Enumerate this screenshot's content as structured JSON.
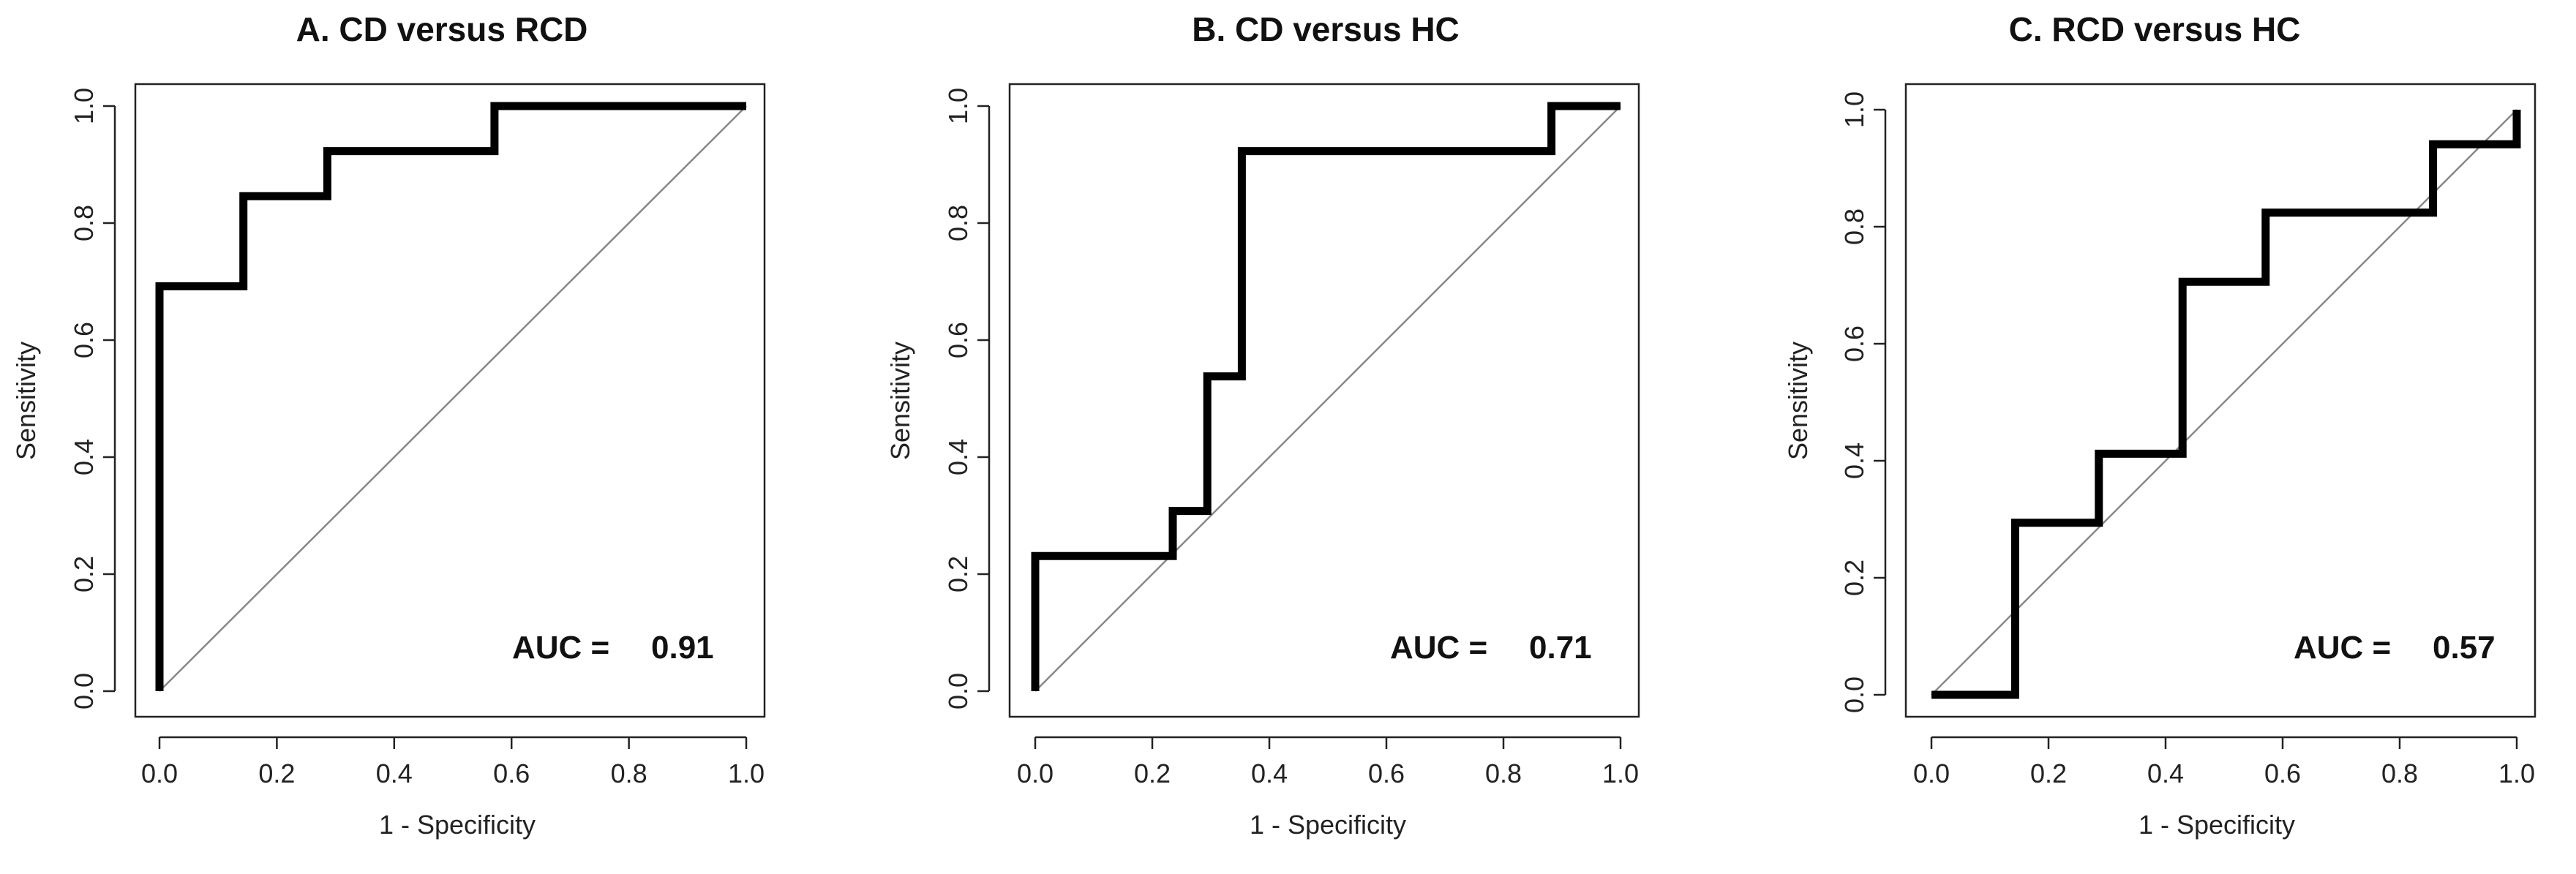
{
  "chart_data": [
    {
      "type": "line",
      "title": "A. CD versus RCD",
      "xlabel": "1 - Specificity",
      "ylabel": "Sensitivity",
      "xlim": [
        0,
        1
      ],
      "ylim": [
        0,
        1
      ],
      "xticks": [
        "0.0",
        "0.2",
        "0.4",
        "0.6",
        "0.8",
        "1.0"
      ],
      "yticks": [
        "0.0",
        "0.2",
        "0.4",
        "0.6",
        "0.8",
        "1.0"
      ],
      "auc_label": "AUC =",
      "auc_value": "0.91",
      "reference_line": "diagonal",
      "x": [
        0,
        0,
        0.143,
        0.143,
        0.286,
        0.286,
        0.571,
        0.571,
        1.0
      ],
      "y": [
        0,
        0.692,
        0.692,
        0.846,
        0.846,
        0.923,
        0.923,
        1.0,
        1.0
      ]
    },
    {
      "type": "line",
      "title": "B. CD versus HC",
      "xlabel": "1 - Specificity",
      "ylabel": "Sensitivity",
      "xlim": [
        0,
        1
      ],
      "ylim": [
        0,
        1
      ],
      "xticks": [
        "0.0",
        "0.2",
        "0.4",
        "0.6",
        "0.8",
        "1.0"
      ],
      "yticks": [
        "0.0",
        "0.2",
        "0.4",
        "0.6",
        "0.8",
        "1.0"
      ],
      "auc_label": "AUC =",
      "auc_value": "0.71",
      "reference_line": "diagonal",
      "x": [
        0,
        0,
        0.235,
        0.235,
        0.294,
        0.294,
        0.353,
        0.353,
        0.882,
        0.882,
        1.0
      ],
      "y": [
        0,
        0.231,
        0.231,
        0.308,
        0.308,
        0.538,
        0.538,
        0.923,
        0.923,
        1.0,
        1.0
      ]
    },
    {
      "type": "line",
      "title": "C. RCD versus HC",
      "xlabel": "1 - Specificity",
      "ylabel": "Sensitivity",
      "xlim": [
        0,
        1
      ],
      "ylim": [
        0,
        1
      ],
      "xticks": [
        "0.0",
        "0.2",
        "0.4",
        "0.6",
        "0.8",
        "1.0"
      ],
      "yticks": [
        "0.0",
        "0.2",
        "0.4",
        "0.6",
        "0.8",
        "1.0"
      ],
      "auc_label": "AUC =",
      "auc_value": "0.57",
      "reference_line": "diagonal",
      "x": [
        0,
        0.143,
        0.143,
        0.286,
        0.286,
        0.429,
        0.429,
        0.571,
        0.571,
        0.857,
        0.857,
        1.0,
        1.0
      ],
      "y": [
        0,
        0,
        0.294,
        0.294,
        0.412,
        0.412,
        0.706,
        0.706,
        0.824,
        0.824,
        0.941,
        0.941,
        1.0
      ]
    }
  ]
}
